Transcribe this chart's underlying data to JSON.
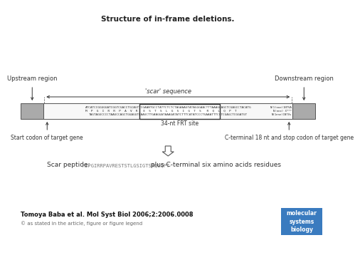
{
  "title": "Structure of in-frame deletions.",
  "title_fontsize": 7.5,
  "fig_bg": "#ffffff",
  "citation": "Tomoya Baba et al. Mol Syst Biol 2006;2:2006.0008",
  "copyright": "© as stated in the article, figure or figure legend",
  "scar_label": "'scar' sequence",
  "frt_label": "34-nt FRT site",
  "upstream_label": "Upstream region",
  "downstream_label": "Downstream region",
  "start_codon_label": "Start codon of target gene",
  "cterminal_label": "C-terminal 18 nt and stop codon of target gene",
  "scar_peptide_label": "Scar peptide:",
  "scar_peptide_seq": "MIPGIRRPAVRESTSTLGSIGTSRQLQPT",
  "scar_peptide_suffix": " plus C-terminal six amino acids residues",
  "gray_box_color": "#aaaaaa",
  "msb_bg": "#3a7bbf",
  "msb_text": "molecular\nsystems\nbiology"
}
